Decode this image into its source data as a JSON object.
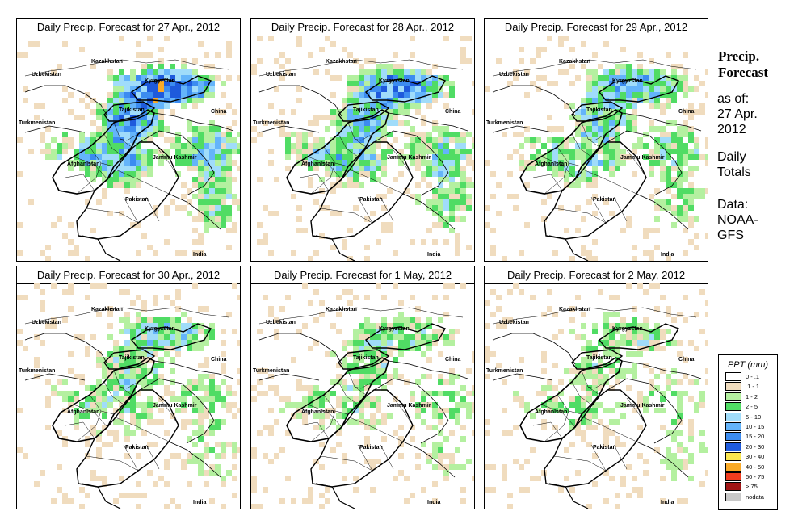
{
  "panels": [
    {
      "title": "Daily Precip. Forecast for  27 Apr., 2012",
      "intensity": 1.0
    },
    {
      "title": "Daily Precip. Forecast for  28 Apr., 2012",
      "intensity": 0.85
    },
    {
      "title": "Daily Precip. Forecast for  29 Apr., 2012",
      "intensity": 0.7
    },
    {
      "title": "Daily Precip. Forecast for  30 Apr., 2012",
      "intensity": 0.55
    },
    {
      "title": "Daily Precip. Forecast for  1 May, 2012",
      "intensity": 0.45
    },
    {
      "title": "Daily Precip. Forecast for  2 May, 2012",
      "intensity": 0.4
    }
  ],
  "map_labels": {
    "kazakhstan": "Kazakhstan",
    "uzbekistan": "Uzbekistan",
    "kyrgyzstan": "Kyrgyzstan",
    "tajikistan": "Tajikistan",
    "china": "China",
    "turkmenistan": "Turkmenistan",
    "afghanistan": "Afghanistan",
    "jammu_kashmir": "Jammu Kashmir",
    "pakistan": "Pakistan",
    "india": "India"
  },
  "sidebar": {
    "title_line1": "Precip.",
    "title_line2": "Forecast",
    "asof_line1": "as of:",
    "asof_line2": "27 Apr.",
    "asof_line3": "2012",
    "totals_line1": "Daily",
    "totals_line2": "Totals",
    "data_line1": "Data:",
    "data_line2": "NOAA-",
    "data_line3": "GFS"
  },
  "legend": {
    "title": "PPT (mm)",
    "items": [
      {
        "range": "0 - .1",
        "color": "#ffffff"
      },
      {
        "range": ".1 - 1",
        "color": "#f0dcbe"
      },
      {
        "range": "1 - 2",
        "color": "#b4f0a0"
      },
      {
        "range": "2 - 5",
        "color": "#50dc64"
      },
      {
        "range": "5 - 10",
        "color": "#a0dcfa"
      },
      {
        "range": "10 - 15",
        "color": "#64b4fa"
      },
      {
        "range": "15 - 20",
        "color": "#3c8cf0"
      },
      {
        "range": "20 - 30",
        "color": "#1e5adc"
      },
      {
        "range": "30 - 40",
        "color": "#fae650"
      },
      {
        "range": "40 - 50",
        "color": "#faaa28"
      },
      {
        "range": "50 - 75",
        "color": "#f03c1e"
      },
      {
        "range": "> 75",
        "color": "#a01414"
      },
      {
        "range": "nodata",
        "color": "#c8c8c8"
      }
    ]
  }
}
